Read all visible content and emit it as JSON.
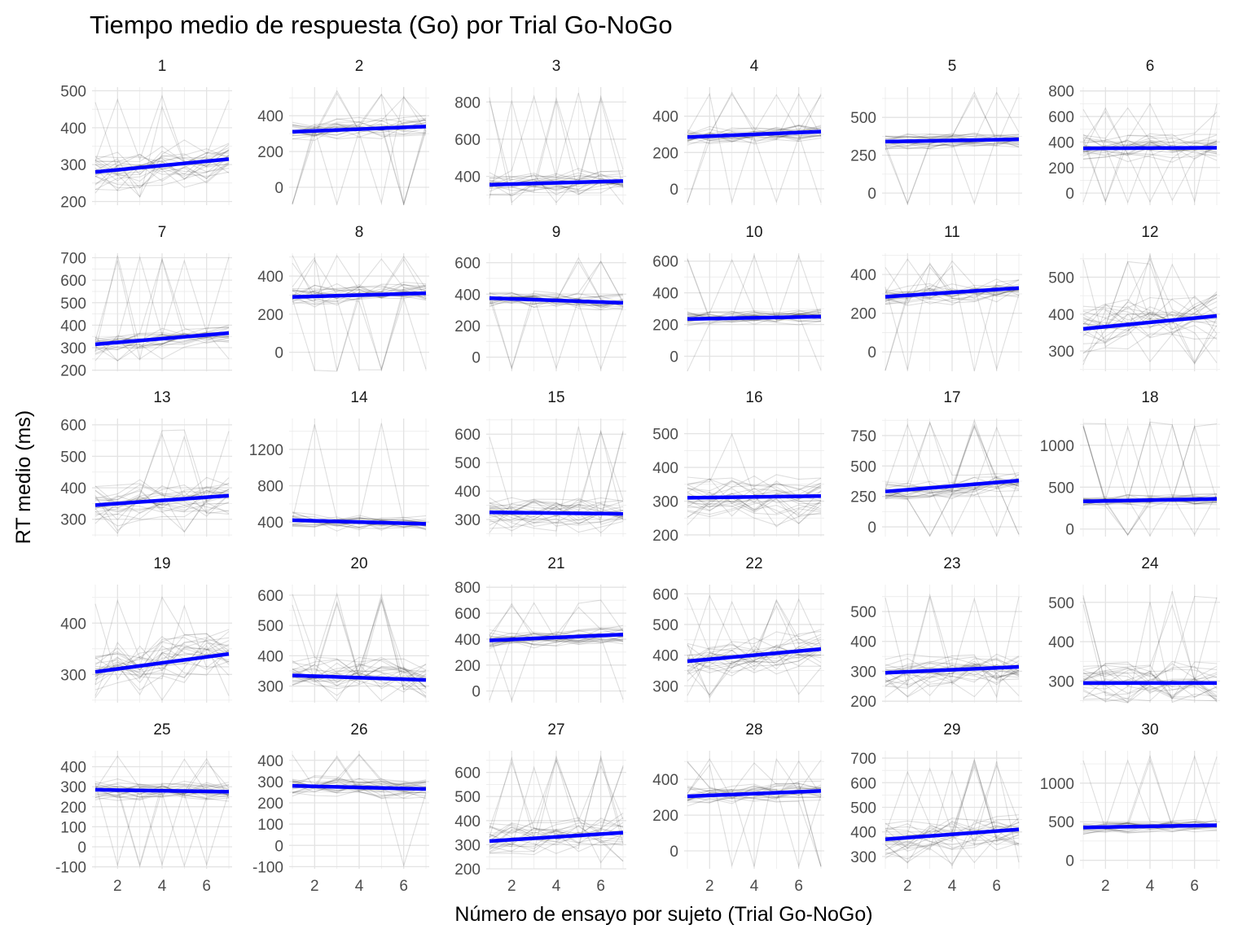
{
  "chart_data": {
    "type": "line",
    "title": "Tiempo medio de respuesta (Go) por Trial Go-NoGo",
    "xlabel": "Número de ensayo por sujeto (Trial Go-NoGo)",
    "ylabel": "RT medio (ms)",
    "grid": true,
    "xlim": [
      1,
      7
    ],
    "x_ticks": [
      2,
      4,
      6
    ],
    "trend_color": "#0000ff",
    "subject_line_color": "#000000",
    "panels": [
      {
        "label": "1",
        "ylim": [
          190,
          510
        ],
        "y_ticks": [
          200,
          300,
          400,
          500
        ],
        "trend": [
          280,
          315
        ],
        "spread": 45,
        "low": 210,
        "high": 500
      },
      {
        "label": "2",
        "ylim": [
          -100,
          560
        ],
        "y_ticks": [
          0,
          200,
          400
        ],
        "trend": [
          310,
          340
        ],
        "spread": 45,
        "low": -100,
        "high": 540
      },
      {
        "label": "3",
        "ylim": [
          245,
          880
        ],
        "y_ticks": [
          400,
          600,
          800
        ],
        "trend": [
          355,
          375
        ],
        "spread": 55,
        "low": 250,
        "high": 850
      },
      {
        "label": "4",
        "ylim": [
          -90,
          560
        ],
        "y_ticks": [
          0,
          200,
          400
        ],
        "trend": [
          285,
          315
        ],
        "spread": 40,
        "low": -80,
        "high": 540
      },
      {
        "label": "5",
        "ylim": [
          -80,
          700
        ],
        "y_ticks": [
          0,
          250,
          500
        ],
        "trend": [
          340,
          355
        ],
        "spread": 40,
        "low": -70,
        "high": 680
      },
      {
        "label": "6",
        "ylim": [
          -95,
          830
        ],
        "y_ticks": [
          0,
          200,
          400,
          600,
          800
        ],
        "trend": [
          350,
          355
        ],
        "spread": 80,
        "low": -80,
        "high": 700
      },
      {
        "label": "7",
        "ylim": [
          195,
          720
        ],
        "y_ticks": [
          200,
          300,
          400,
          500,
          600,
          700
        ],
        "trend": [
          315,
          365
        ],
        "spread": 35,
        "low": 240,
        "high": 720
      },
      {
        "label": "8",
        "ylim": [
          -100,
          520
        ],
        "y_ticks": [
          0,
          200,
          400
        ],
        "trend": [
          290,
          310
        ],
        "spread": 45,
        "low": -100,
        "high": 510
      },
      {
        "label": "9",
        "ylim": [
          -90,
          660
        ],
        "y_ticks": [
          0,
          200,
          400,
          600
        ],
        "trend": [
          375,
          345
        ],
        "spread": 40,
        "low": -80,
        "high": 640
      },
      {
        "label": "10",
        "ylim": [
          -95,
          650
        ],
        "y_ticks": [
          0,
          200,
          400,
          600
        ],
        "trend": [
          235,
          250
        ],
        "spread": 35,
        "low": -95,
        "high": 640
      },
      {
        "label": "11",
        "ylim": [
          -100,
          510
        ],
        "y_ticks": [
          0,
          200,
          400
        ],
        "trend": [
          285,
          330
        ],
        "spread": 45,
        "low": -100,
        "high": 480
      },
      {
        "label": "12",
        "ylim": [
          245,
          565
        ],
        "y_ticks": [
          300,
          400,
          500
        ],
        "trend": [
          360,
          395
        ],
        "spread": 50,
        "low": 260,
        "high": 560
      },
      {
        "label": "13",
        "ylim": [
          245,
          620
        ],
        "y_ticks": [
          300,
          400,
          500,
          600
        ],
        "trend": [
          345,
          375
        ],
        "spread": 50,
        "low": 250,
        "high": 600
      },
      {
        "label": "14",
        "ylim": [
          240,
          1540
        ],
        "y_ticks": [
          400,
          800,
          1200
        ],
        "trend": [
          420,
          380
        ],
        "spread": 60,
        "low": 300,
        "high": 1500
      },
      {
        "label": "15",
        "ylim": [
          240,
          655
        ],
        "y_ticks": [
          300,
          400,
          500,
          600
        ],
        "trend": [
          325,
          320
        ],
        "spread": 40,
        "low": 250,
        "high": 630
      },
      {
        "label": "16",
        "ylim": [
          195,
          545
        ],
        "y_ticks": [
          200,
          300,
          400,
          500
        ],
        "trend": [
          310,
          315
        ],
        "spread": 50,
        "low": 220,
        "high": 540
      },
      {
        "label": "17",
        "ylim": [
          -80,
          890
        ],
        "y_ticks": [
          0,
          250,
          500,
          750
        ],
        "trend": [
          290,
          380
        ],
        "spread": 70,
        "low": -80,
        "high": 880
      },
      {
        "label": "18",
        "ylim": [
          -90,
          1320
        ],
        "y_ticks": [
          0,
          500,
          1000
        ],
        "trend": [
          330,
          360
        ],
        "spread": 60,
        "low": -80,
        "high": 1280
      },
      {
        "label": "19",
        "ylim": [
          245,
          475
        ],
        "y_ticks": [
          300,
          400
        ],
        "trend": [
          305,
          340
        ],
        "spread": 40,
        "low": 250,
        "high": 470
      },
      {
        "label": "20",
        "ylim": [
          245,
          635
        ],
        "y_ticks": [
          300,
          400,
          500,
          600
        ],
        "trend": [
          335,
          320
        ],
        "spread": 50,
        "low": 250,
        "high": 610
      },
      {
        "label": "21",
        "ylim": [
          -90,
          820
        ],
        "y_ticks": [
          0,
          200,
          400,
          600,
          800
        ],
        "trend": [
          390,
          435
        ],
        "spread": 55,
        "low": -80,
        "high": 700
      },
      {
        "label": "22",
        "ylim": [
          245,
          630
        ],
        "y_ticks": [
          300,
          400,
          500,
          600
        ],
        "trend": [
          380,
          420
        ],
        "spread": 50,
        "low": 260,
        "high": 610
      },
      {
        "label": "23",
        "ylim": [
          195,
          590
        ],
        "y_ticks": [
          200,
          300,
          400,
          500
        ],
        "trend": [
          295,
          315
        ],
        "spread": 40,
        "low": 210,
        "high": 570
      },
      {
        "label": "24",
        "ylim": [
          245,
          545
        ],
        "y_ticks": [
          300,
          400,
          500
        ],
        "trend": [
          295,
          295
        ],
        "spread": 40,
        "low": 250,
        "high": 530
      },
      {
        "label": "25",
        "ylim": [
          -110,
          480
        ],
        "y_ticks": [
          -100,
          0,
          100,
          200,
          300,
          400
        ],
        "trend": [
          285,
          275
        ],
        "spread": 40,
        "low": -100,
        "high": 460
      },
      {
        "label": "26",
        "ylim": [
          -110,
          445
        ],
        "y_ticks": [
          -100,
          0,
          100,
          200,
          300,
          400
        ],
        "trend": [
          280,
          265
        ],
        "spread": 35,
        "low": -100,
        "high": 440
      },
      {
        "label": "27",
        "ylim": [
          200,
          690
        ],
        "y_ticks": [
          200,
          300,
          400,
          500,
          600
        ],
        "trend": [
          315,
          350
        ],
        "spread": 55,
        "low": 220,
        "high": 670
      },
      {
        "label": "28",
        "ylim": [
          -100,
          560
        ],
        "y_ticks": [
          0,
          200,
          400
        ],
        "trend": [
          305,
          335
        ],
        "spread": 40,
        "low": -90,
        "high": 520
      },
      {
        "label": "29",
        "ylim": [
          250,
          730
        ],
        "y_ticks": [
          300,
          400,
          500,
          600,
          700
        ],
        "trend": [
          370,
          410
        ],
        "spread": 60,
        "low": 260,
        "high": 700
      },
      {
        "label": "30",
        "ylim": [
          -110,
          1420
        ],
        "y_ticks": [
          0,
          500,
          1000
        ],
        "trend": [
          425,
          455
        ],
        "spread": 60,
        "low": -100,
        "high": 1350
      }
    ]
  }
}
